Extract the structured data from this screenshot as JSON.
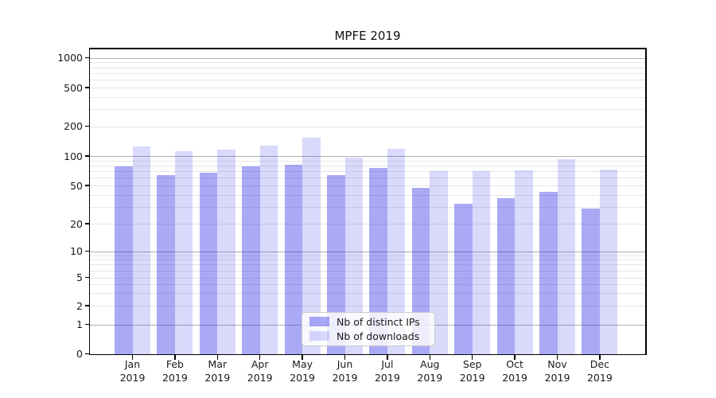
{
  "title": "MPFE 2019",
  "chart_data": {
    "type": "bar",
    "title": "MPFE 2019",
    "xlabel": "",
    "ylabel": "",
    "scale": "symlog",
    "categories": [
      "Jan 2019",
      "Feb 2019",
      "Mar 2019",
      "Apr 2019",
      "May 2019",
      "Jun 2019",
      "Jul 2019",
      "Aug 2019",
      "Sep 2019",
      "Oct 2019",
      "Nov 2019",
      "Dec 2019"
    ],
    "month_line": [
      "Jan",
      "Feb",
      "Mar",
      "Apr",
      "May",
      "Jun",
      "Jul",
      "Aug",
      "Sep",
      "Oct",
      "Nov",
      "Dec"
    ],
    "year_line": "2019",
    "series": [
      {
        "name": "Nb of distinct IPs",
        "color": "rgba(40,40,230,0.4)",
        "values": [
          78,
          64,
          68,
          78,
          81,
          64,
          75,
          47,
          32,
          37,
          43,
          29
        ]
      },
      {
        "name": "Nb of downloads",
        "color": "rgba(40,40,230,0.175)",
        "values": [
          125,
          112,
          115,
          128,
          152,
          96,
          119,
          70,
          70,
          71,
          93,
          73
        ]
      }
    ],
    "yticks": [
      0,
      1,
      2,
      5,
      10,
      20,
      50,
      100,
      200,
      500,
      1000
    ],
    "ylim": [
      0,
      1200
    ],
    "grid": "on",
    "legend_position": "lower center"
  },
  "colors": {
    "bar_dark": "rgba(40,40,230,0.4)",
    "bar_light": "rgba(40,40,230,0.175)",
    "grid_major": "#b0b0b0",
    "grid_minor": "#e7e7e7",
    "axis": "#000000"
  }
}
